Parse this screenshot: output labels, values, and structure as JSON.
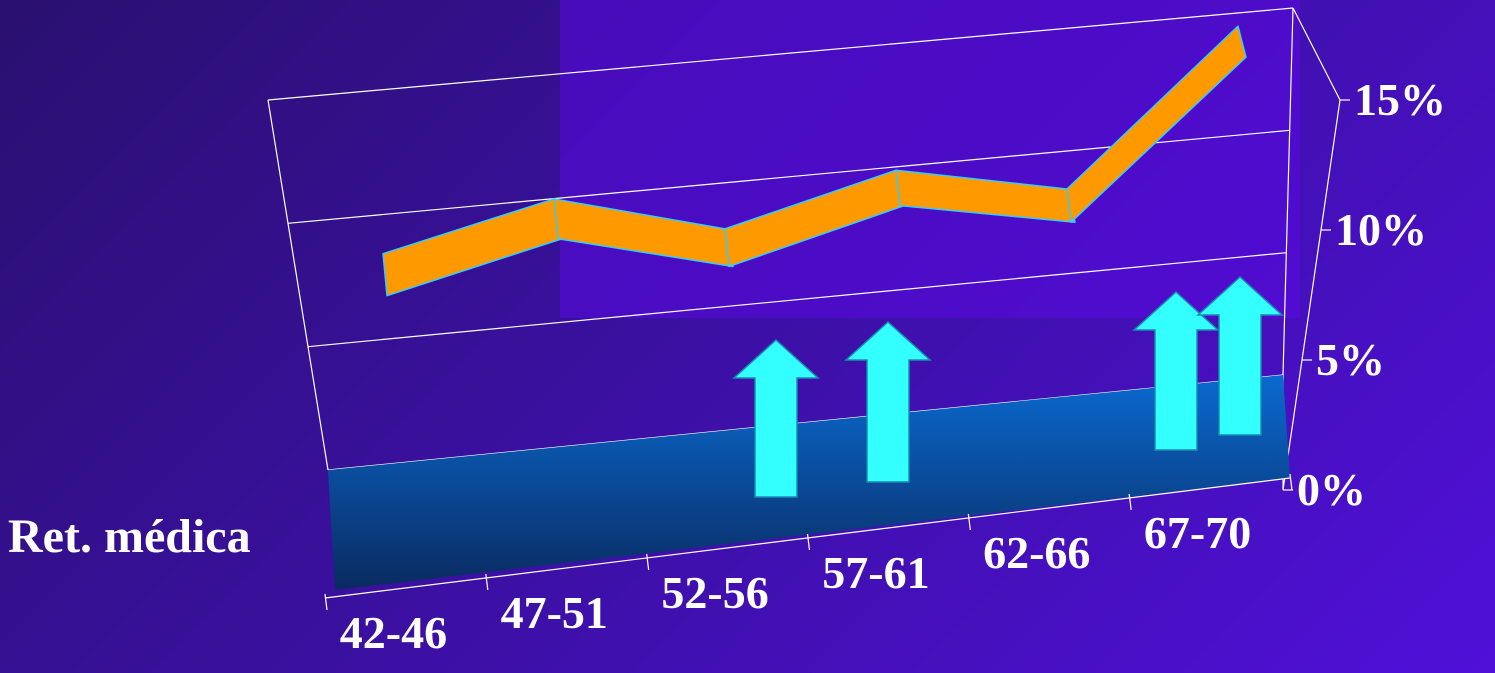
{
  "chart_data": {
    "type": "line",
    "view": "3d",
    "series_label": "Ret. médica",
    "categories": [
      "42-46",
      "47-51",
      "52-56",
      "57-61",
      "62-66",
      "67-70"
    ],
    "values": [
      9.5,
      11.5,
      9.0,
      11.2,
      9.3,
      17.0
    ],
    "ylim": [
      0,
      15
    ],
    "yticks": [
      "0%",
      "5%",
      "10%",
      "15%"
    ],
    "ytick_values": [
      0,
      5,
      10,
      15
    ],
    "grid": true,
    "colors": {
      "line_fill": "#ff9900",
      "line_edge": "#33ccff",
      "floor": "#0066cc",
      "arrow": "#33ffff",
      "gridline": "#ffffff"
    },
    "annotations": [
      {
        "type": "up-arrow",
        "category": "52-56"
      },
      {
        "type": "up-arrow",
        "category": "57-61"
      },
      {
        "type": "up-arrow",
        "category": "67-70"
      },
      {
        "type": "up-arrow",
        "category": "67-70"
      }
    ]
  }
}
